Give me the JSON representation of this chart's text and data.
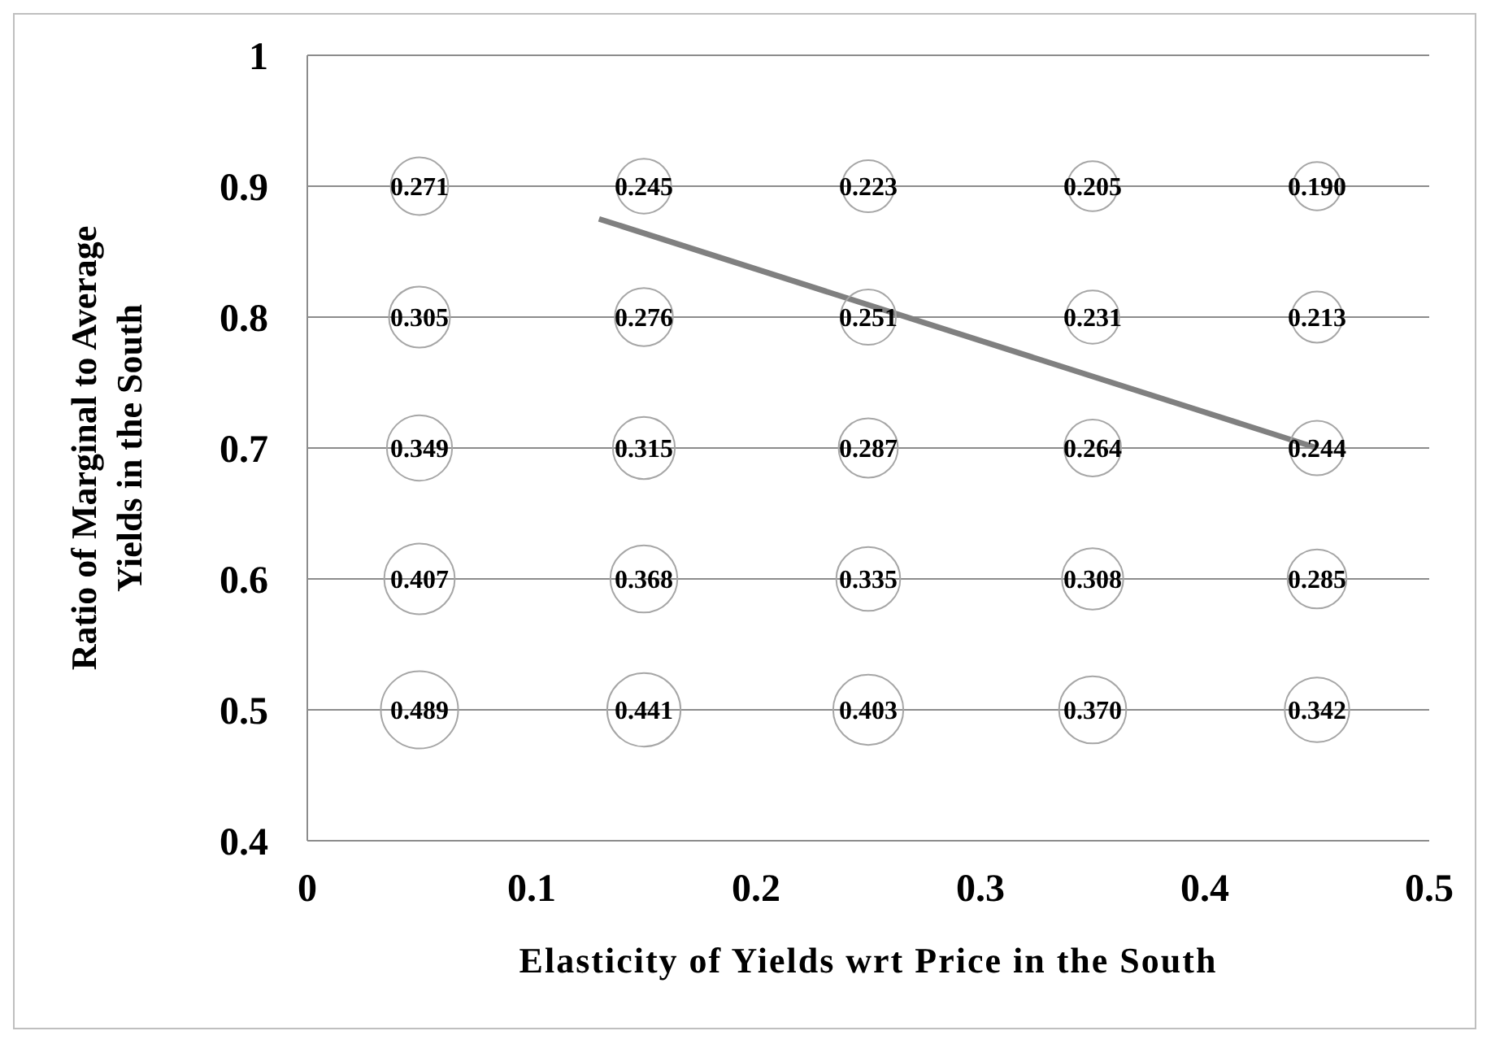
{
  "chart_data": {
    "type": "bubble",
    "xlabel": "Elasticity of Yields wrt Price in the South",
    "ylabel": "Ratio of Marginal to Average Yields in the South",
    "xlim": [
      0,
      0.5
    ],
    "xticks": [
      0,
      0.1,
      0.2,
      0.3,
      0.4,
      0.5
    ],
    "ylim": [
      0.4,
      1
    ],
    "yticks": [
      0.4,
      0.5,
      0.6,
      0.7,
      0.8,
      0.9,
      1
    ],
    "grid": "y",
    "series": [
      {
        "color": "#a6a6a6",
        "x": [
          0.05,
          0.15,
          0.25,
          0.35,
          0.45,
          0.05,
          0.15,
          0.25,
          0.35,
          0.45,
          0.05,
          0.15,
          0.25,
          0.35,
          0.45,
          0.05,
          0.15,
          0.25,
          0.35,
          0.45,
          0.05,
          0.15,
          0.25,
          0.35,
          0.45
        ],
        "values": [
          0.9,
          0.9,
          0.9,
          0.9,
          0.9,
          0.8,
          0.8,
          0.8,
          0.8,
          0.8,
          0.7,
          0.7,
          0.7,
          0.7,
          0.7,
          0.6,
          0.6,
          0.6,
          0.6,
          0.6,
          0.5,
          0.5,
          0.5,
          0.5,
          0.5
        ],
        "sizes": [
          0.271,
          0.245,
          0.223,
          0.205,
          0.19,
          0.305,
          0.276,
          0.251,
          0.231,
          0.213,
          0.349,
          0.315,
          0.287,
          0.264,
          0.244,
          0.407,
          0.368,
          0.335,
          0.308,
          0.285,
          0.489,
          0.441,
          0.403,
          0.37,
          0.342
        ],
        "value_labels": [
          "0.271",
          "0.245",
          "0.223",
          "0.205",
          "0.190",
          "0.305",
          "0.276",
          "0.251",
          "0.231",
          "0.213",
          "0.349",
          "0.315",
          "0.287",
          "0.264",
          "0.244",
          "0.407",
          "0.368",
          "0.335",
          "0.308",
          "0.285",
          "0.489",
          "0.441",
          "0.403",
          "0.370",
          "0.342"
        ]
      },
      {
        "type": "line",
        "color": "#808080",
        "x": [
          0.13,
          0.45
        ],
        "values": [
          0.875,
          0.7
        ]
      }
    ]
  }
}
